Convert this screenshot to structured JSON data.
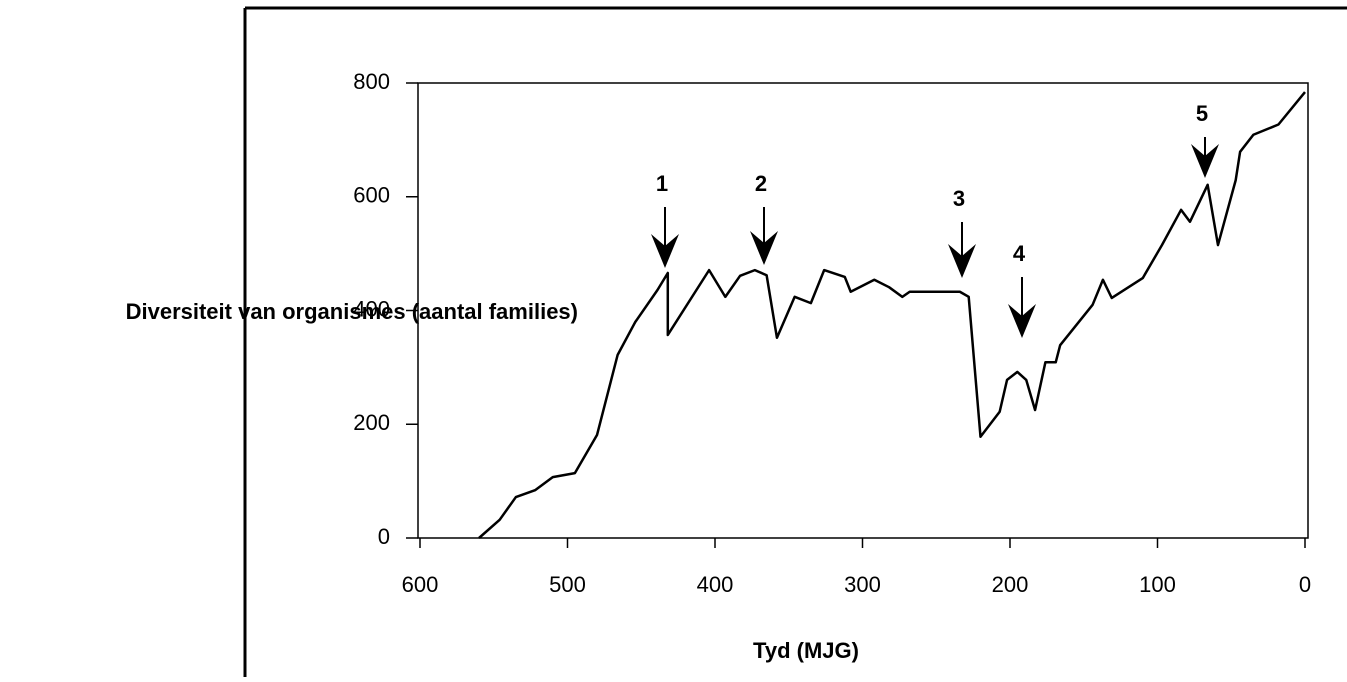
{
  "chart_data": {
    "type": "line",
    "x_label": "Tyd (MJG)",
    "y_label": "Diversiteit van organismes (aantal families)",
    "x": [
      560,
      546,
      535,
      522,
      510,
      495,
      480,
      466,
      454,
      439,
      432,
      432,
      404,
      393,
      383,
      373,
      365,
      358,
      346,
      335,
      326,
      312,
      308,
      292,
      282,
      273,
      268,
      234,
      228,
      220,
      207,
      202,
      195,
      189,
      183,
      176,
      169,
      166,
      144,
      137,
      131,
      110,
      97,
      84,
      78,
      66,
      59,
      47,
      44,
      35,
      18,
      0
    ],
    "series": [
      {
        "color": "#000000",
        "values": [
          0,
          32,
          72,
          84,
          107,
          114,
          181,
          322,
          380,
          436,
          466,
          357,
          471,
          424,
          461,
          471,
          462,
          352,
          424,
          413,
          471,
          459,
          433,
          454,
          441,
          424,
          433,
          433,
          424,
          178,
          222,
          278,
          292,
          278,
          225,
          309,
          309,
          339,
          410,
          454,
          422,
          457,
          515,
          577,
          556,
          621,
          515,
          629,
          679,
          709,
          727,
          784
        ]
      }
    ],
    "xlim": [
      600,
      0
    ],
    "ylim": [
      0,
      800
    ],
    "xticks": [
      600,
      500,
      400,
      300,
      200,
      100,
      0
    ],
    "yticks": [
      0,
      200,
      400,
      600,
      800
    ],
    "annotations": [
      "1",
      "2",
      "3",
      "4",
      "5"
    ]
  }
}
